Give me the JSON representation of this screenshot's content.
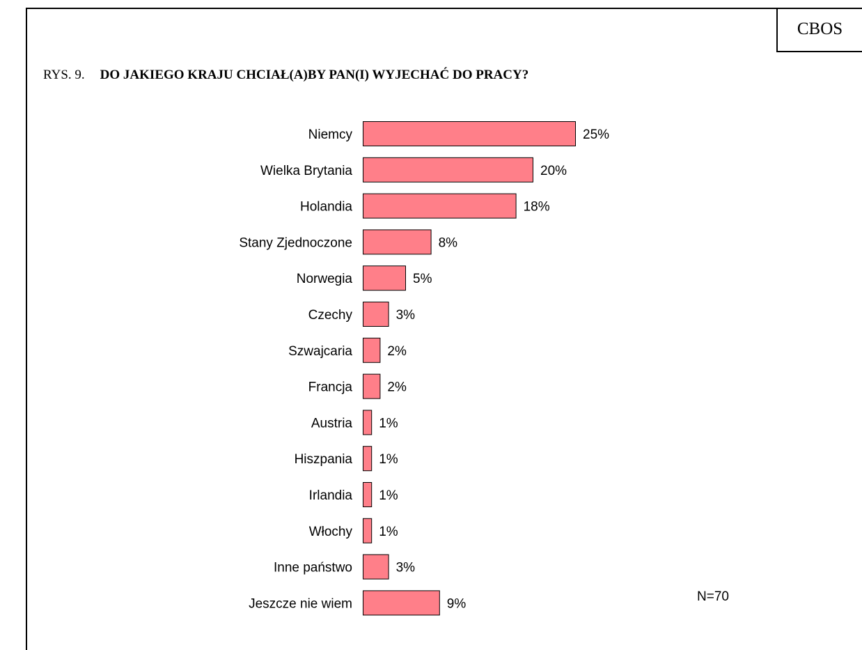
{
  "brand": "CBOS",
  "figure": {
    "prefix": "RYS. 9.",
    "title": "DO JAKIEGO KRAJU CHCIAŁ(A)BY PAN(I) WYJECHAĆ DO PRACY?"
  },
  "chart_data": {
    "type": "bar",
    "orientation": "horizontal",
    "categories": [
      "Niemcy",
      "Wielka Brytania",
      "Holandia",
      "Stany Zjednoczone",
      "Norwegia",
      "Czechy",
      "Szwajcaria",
      "Francja",
      "Austria",
      "Hiszpania",
      "Irlandia",
      "Włochy",
      "Inne państwo",
      "Jeszcze nie wiem"
    ],
    "values": [
      25,
      20,
      18,
      8,
      5,
      3,
      2,
      2,
      1,
      1,
      1,
      1,
      3,
      9
    ],
    "value_labels": [
      "25%",
      "20%",
      "18%",
      "8%",
      "5%",
      "3%",
      "2%",
      "2%",
      "1%",
      "1%",
      "1%",
      "1%",
      "3%",
      "9%"
    ],
    "unit": "%",
    "title": "DO JAKIEGO KRAJU CHCIAŁ(A)BY PAN(I) WYJECHAĆ DO PRACY?",
    "annotation": "N=70",
    "bar_color": "#ff7f89",
    "bar_outline": "#000000",
    "grid": false,
    "legend": "none",
    "xlim": [
      0,
      25
    ]
  }
}
